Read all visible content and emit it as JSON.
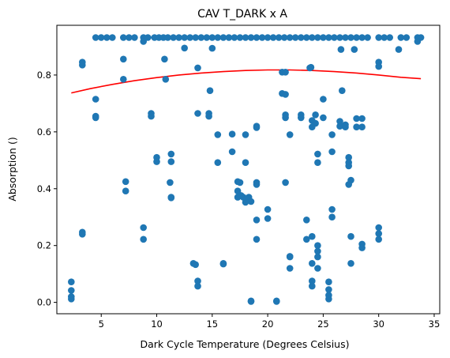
{
  "chart_data": {
    "type": "scatter",
    "title": "CAV T_DARK x A",
    "xlabel": "Dark Cycle Temperature (Degrees Celsius)",
    "ylabel": "Absorption ()",
    "xlim": [
      1.0,
      35.5
    ],
    "ylim": [
      -0.04,
      0.975
    ],
    "xticks": [
      5,
      10,
      15,
      20,
      25,
      30,
      35
    ],
    "xtick_labels": [
      "5",
      "10",
      "15",
      "20",
      "25",
      "30",
      "35"
    ],
    "yticks": [
      0.0,
      0.2,
      0.4,
      0.6,
      0.8
    ],
    "ytick_labels": [
      "0.0",
      "0.2",
      "0.4",
      "0.6",
      "0.8"
    ],
    "grid": false,
    "legend": "none",
    "colors": {
      "points": "#1f77b4",
      "fit": "#ff0000"
    },
    "fit_curve": {
      "label": "",
      "x": [
        2.3,
        4,
        6,
        8,
        10,
        12,
        14,
        16,
        18,
        20,
        22,
        24,
        26,
        28,
        30,
        32,
        33.8
      ],
      "y": [
        0.737,
        0.752,
        0.767,
        0.78,
        0.791,
        0.8,
        0.807,
        0.812,
        0.816,
        0.818,
        0.818,
        0.816,
        0.812,
        0.807,
        0.8,
        0.792,
        0.787
      ]
    },
    "points": [
      [
        4.5,
        0.932
      ],
      [
        5.0,
        0.932
      ],
      [
        5.5,
        0.932
      ],
      [
        6.0,
        0.932
      ],
      [
        7.0,
        0.932
      ],
      [
        7.5,
        0.932
      ],
      [
        8.0,
        0.932
      ],
      [
        8.8,
        0.932
      ],
      [
        9.2,
        0.932
      ],
      [
        9.8,
        0.932
      ],
      [
        10.2,
        0.932
      ],
      [
        10.6,
        0.932
      ],
      [
        11.0,
        0.932
      ],
      [
        11.5,
        0.932
      ],
      [
        12.0,
        0.932
      ],
      [
        12.5,
        0.932
      ],
      [
        13.0,
        0.932
      ],
      [
        13.5,
        0.932
      ],
      [
        14.0,
        0.932
      ],
      [
        14.5,
        0.932
      ],
      [
        15.0,
        0.932
      ],
      [
        15.5,
        0.932
      ],
      [
        16.0,
        0.932
      ],
      [
        16.5,
        0.932
      ],
      [
        17.0,
        0.932
      ],
      [
        17.5,
        0.932
      ],
      [
        18.0,
        0.932
      ],
      [
        18.5,
        0.932
      ],
      [
        19.0,
        0.932
      ],
      [
        19.5,
        0.932
      ],
      [
        20.0,
        0.932
      ],
      [
        20.5,
        0.932
      ],
      [
        21.0,
        0.932
      ],
      [
        21.5,
        0.932
      ],
      [
        22.0,
        0.932
      ],
      [
        22.5,
        0.932
      ],
      [
        23.0,
        0.932
      ],
      [
        23.5,
        0.932
      ],
      [
        24.0,
        0.932
      ],
      [
        24.5,
        0.932
      ],
      [
        25.0,
        0.932
      ],
      [
        25.5,
        0.932
      ],
      [
        26.0,
        0.932
      ],
      [
        26.5,
        0.932
      ],
      [
        27.0,
        0.932
      ],
      [
        27.5,
        0.932
      ],
      [
        28.0,
        0.932
      ],
      [
        28.5,
        0.932
      ],
      [
        29.0,
        0.932
      ],
      [
        30.0,
        0.932
      ],
      [
        30.5,
        0.932
      ],
      [
        31.0,
        0.932
      ],
      [
        32.0,
        0.932
      ],
      [
        32.5,
        0.932
      ],
      [
        33.5,
        0.932
      ],
      [
        33.8,
        0.932
      ],
      [
        8.8,
        0.918
      ],
      [
        15.0,
        0.894
      ],
      [
        12.5,
        0.895
      ],
      [
        26.6,
        0.89
      ],
      [
        27.8,
        0.89
      ],
      [
        31.8,
        0.89
      ],
      [
        33.5,
        0.918
      ],
      [
        3.3,
        0.845
      ],
      [
        3.3,
        0.835
      ],
      [
        7.0,
        0.856
      ],
      [
        10.7,
        0.856
      ],
      [
        23.9,
        0.827
      ],
      [
        23.8,
        0.825
      ],
      [
        13.7,
        0.825
      ],
      [
        30.0,
        0.845
      ],
      [
        30.0,
        0.83
      ],
      [
        7.0,
        0.785
      ],
      [
        10.8,
        0.785
      ],
      [
        21.3,
        0.81
      ],
      [
        21.6,
        0.81
      ],
      [
        14.8,
        0.745
      ],
      [
        26.7,
        0.745
      ],
      [
        21.3,
        0.735
      ],
      [
        21.6,
        0.732
      ],
      [
        4.5,
        0.715
      ],
      [
        25.0,
        0.715
      ],
      [
        9.5,
        0.665
      ],
      [
        9.5,
        0.655
      ],
      [
        13.7,
        0.665
      ],
      [
        14.7,
        0.665
      ],
      [
        14.7,
        0.655
      ],
      [
        4.5,
        0.655
      ],
      [
        4.5,
        0.65
      ],
      [
        21.6,
        0.66
      ],
      [
        21.6,
        0.65
      ],
      [
        23.0,
        0.66
      ],
      [
        23.0,
        0.65
      ],
      [
        24.0,
        0.64
      ],
      [
        24.3,
        0.63
      ],
      [
        24.0,
        0.617
      ],
      [
        24.3,
        0.66
      ],
      [
        25.0,
        0.65
      ],
      [
        26.5,
        0.637
      ],
      [
        26.5,
        0.62
      ],
      [
        27.0,
        0.617
      ],
      [
        27.0,
        0.625
      ],
      [
        28.0,
        0.647
      ],
      [
        28.5,
        0.647
      ],
      [
        28.0,
        0.617
      ],
      [
        28.5,
        0.617
      ],
      [
        19.0,
        0.615
      ],
      [
        19.0,
        0.62
      ],
      [
        15.5,
        0.59
      ],
      [
        16.8,
        0.592
      ],
      [
        18.0,
        0.59
      ],
      [
        22.0,
        0.59
      ],
      [
        25.8,
        0.59
      ],
      [
        11.3,
        0.522
      ],
      [
        16.8,
        0.53
      ],
      [
        24.5,
        0.522
      ],
      [
        25.8,
        0.53
      ],
      [
        10.0,
        0.51
      ],
      [
        10.0,
        0.495
      ],
      [
        11.3,
        0.495
      ],
      [
        15.5,
        0.492
      ],
      [
        18.0,
        0.492
      ],
      [
        24.5,
        0.492
      ],
      [
        27.3,
        0.51
      ],
      [
        27.3,
        0.492
      ],
      [
        27.3,
        0.48
      ],
      [
        11.2,
        0.422
      ],
      [
        7.2,
        0.425
      ],
      [
        17.3,
        0.425
      ],
      [
        17.5,
        0.422
      ],
      [
        19.0,
        0.422
      ],
      [
        19.0,
        0.415
      ],
      [
        21.6,
        0.422
      ],
      [
        27.5,
        0.43
      ],
      [
        27.3,
        0.415
      ],
      [
        7.2,
        0.392
      ],
      [
        17.3,
        0.392
      ],
      [
        11.3,
        0.37
      ],
      [
        11.3,
        0.368
      ],
      [
        17.3,
        0.37
      ],
      [
        17.8,
        0.37
      ],
      [
        18.3,
        0.37
      ],
      [
        18.5,
        0.355
      ],
      [
        18.0,
        0.352
      ],
      [
        17.6,
        0.376
      ],
      [
        20.0,
        0.327
      ],
      [
        25.8,
        0.327
      ],
      [
        25.8,
        0.3
      ],
      [
        20.0,
        0.295
      ],
      [
        3.3,
        0.247
      ],
      [
        3.3,
        0.24
      ],
      [
        8.8,
        0.263
      ],
      [
        8.8,
        0.222
      ],
      [
        19.0,
        0.29
      ],
      [
        23.5,
        0.29
      ],
      [
        30.0,
        0.263
      ],
      [
        30.0,
        0.242
      ],
      [
        30.0,
        0.222
      ],
      [
        19.0,
        0.222
      ],
      [
        23.5,
        0.222
      ],
      [
        24.0,
        0.232
      ],
      [
        27.5,
        0.232
      ],
      [
        24.5,
        0.2
      ],
      [
        28.5,
        0.205
      ],
      [
        28.5,
        0.192
      ],
      [
        24.5,
        0.18
      ],
      [
        24.5,
        0.16
      ],
      [
        22.0,
        0.162
      ],
      [
        22.0,
        0.16
      ],
      [
        13.3,
        0.137
      ],
      [
        13.5,
        0.133
      ],
      [
        16.0,
        0.137
      ],
      [
        16.0,
        0.135
      ],
      [
        24.0,
        0.137
      ],
      [
        27.5,
        0.137
      ],
      [
        22.0,
        0.12
      ],
      [
        24.5,
        0.12
      ],
      [
        2.3,
        0.072
      ],
      [
        13.7,
        0.075
      ],
      [
        13.7,
        0.057
      ],
      [
        24.0,
        0.075
      ],
      [
        24.0,
        0.057
      ],
      [
        25.5,
        0.072
      ],
      [
        25.5,
        0.045
      ],
      [
        2.3,
        0.042
      ],
      [
        2.3,
        0.02
      ],
      [
        2.3,
        0.012
      ],
      [
        25.5,
        0.025
      ],
      [
        25.5,
        0.012
      ],
      [
        18.5,
        0.005
      ],
      [
        18.5,
        0.003
      ],
      [
        20.8,
        0.005
      ],
      [
        20.8,
        0.003
      ]
    ]
  }
}
